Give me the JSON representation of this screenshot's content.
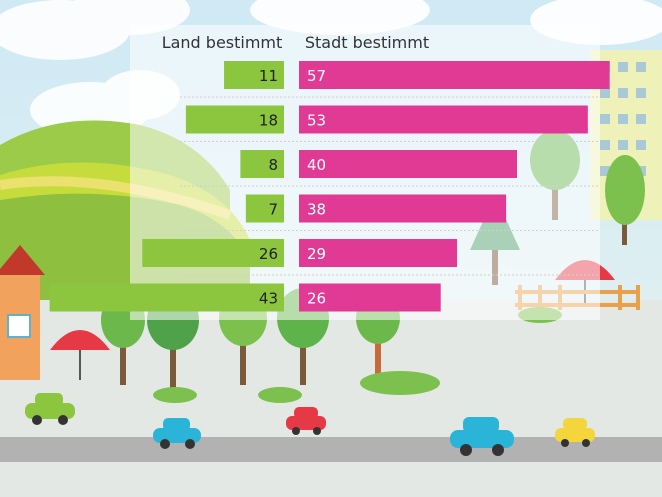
{
  "chart_data": {
    "type": "bar",
    "orientation": "horizontal-butterfly",
    "series": [
      {
        "name": "Land bestimmt",
        "values": [
          11,
          18,
          8,
          7,
          26,
          43
        ],
        "color": "#8cc63f"
      },
      {
        "name": "Stadt bestimmt",
        "values": [
          57,
          53,
          40,
          38,
          29,
          26
        ],
        "color": "#e03a94"
      }
    ],
    "xlim": [
      0,
      60
    ],
    "grid": false,
    "legend": "top"
  },
  "colors": {
    "sky": "#dceff7",
    "hills": "#a8d05a",
    "road": "#b2b2b2",
    "land_bar": "#8cc63f",
    "stadt_bar": "#e03a94"
  }
}
